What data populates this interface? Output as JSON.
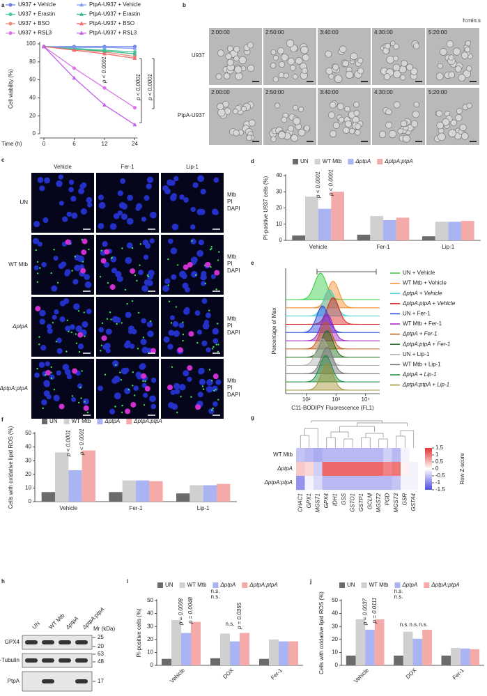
{
  "chart_data": [
    {
      "type": "line",
      "panel": "a",
      "xlabel": "Time (h)",
      "ylabel": "Cell viability (%)",
      "categories": [
        0,
        6,
        12,
        24
      ],
      "ylim": [
        0,
        100
      ],
      "yticks": [
        0,
        20,
        40,
        60,
        80,
        100
      ],
      "series": [
        {
          "name": "U937 + Vehicle",
          "color": "#6f7fe8",
          "values": [
            97,
            97,
            97,
            97
          ]
        },
        {
          "name": "U937 + Erastin",
          "color": "#4fc9a0",
          "values": [
            97,
            95,
            93,
            91
          ]
        },
        {
          "name": "U937 + BSO",
          "color": "#f08a7a",
          "values": [
            97,
            94,
            91,
            86
          ]
        },
        {
          "name": "U937 + RSL3",
          "color": "#d977e6",
          "values": [
            97,
            73,
            51,
            29
          ]
        },
        {
          "name": "PtpA-U937 + Vehicle",
          "color": "#7fa0f0",
          "values": [
            97,
            96,
            96,
            95
          ]
        },
        {
          "name": "PtpA-U937 + Erastin",
          "color": "#3fb88a",
          "values": [
            97,
            94,
            92,
            89
          ]
        },
        {
          "name": "PtpA-U937 + BSO",
          "color": "#f06a6a",
          "values": [
            97,
            93,
            89,
            84
          ]
        },
        {
          "name": "PtpA-U937 + RSL3",
          "color": "#c060e8",
          "values": [
            97,
            62,
            32,
            10
          ]
        }
      ],
      "annotations": [
        "p < 0.0001",
        "p < 0.0001",
        "p < 0.0001"
      ]
    },
    {
      "type": "bar",
      "panel": "d",
      "ylabel": "PI-positive U937 cells (%)",
      "categories": [
        "Vehicle",
        "Fer-1",
        "Lip-1"
      ],
      "ylim": [
        0,
        40
      ],
      "yticks": [
        0,
        10,
        20,
        30,
        40
      ],
      "series": [
        {
          "name": "UN",
          "color": "#6b6b6b",
          "values": [
            3,
            3.5,
            2.5
          ]
        },
        {
          "name": "WT Mtb",
          "color": "#d0d0d0",
          "values": [
            27,
            15,
            11.5
          ]
        },
        {
          "name": "ΔptpA",
          "color": "#aab4f2",
          "values": [
            19.5,
            12.5,
            11.5
          ]
        },
        {
          "name": "ΔptpA:ptpA",
          "color": "#f3aaa8",
          "values": [
            30,
            14,
            12
          ]
        }
      ],
      "annotations": [
        "p < 0.0001",
        "p < 0.0001"
      ]
    },
    {
      "type": "ridgeline",
      "panel": "e",
      "ylabel": "Percentage of Max",
      "xlabel": "C11-BODIPY Fluorescence (FL1)",
      "log_x": true,
      "xlim": [
        20,
        30000
      ],
      "xticks": [
        {
          "value": 100,
          "label": "10²"
        },
        {
          "value": 1000,
          "label": "10³"
        },
        {
          "value": 10000,
          "label": "10⁴"
        }
      ],
      "series": [
        {
          "name": "UN + Vehicle",
          "color": "#2ecc40",
          "peak": 300
        },
        {
          "name": "WT Mtb + Vehicle",
          "color": "#f28c28",
          "peak": 800
        },
        {
          "name": "ΔptpA + Vehicle",
          "color": "#40d0d0",
          "peak": 600
        },
        {
          "name": "ΔptpA:ptpA + Vehicle",
          "color": "#e02020",
          "peak": 800
        },
        {
          "name": "UN + Fer-1",
          "color": "#2040e0",
          "peak": 350
        },
        {
          "name": "WT Mtb + Fer-1",
          "color": "#a020c0",
          "peak": 500
        },
        {
          "name": "ΔptpA + Fer-1",
          "color": "#c05a10",
          "peak": 450
        },
        {
          "name": "ΔptpA:ptpA + Fer-1",
          "color": "#1a6a1a",
          "peak": 500
        },
        {
          "name": "UN + Lip-1",
          "color": "#b0b0b0",
          "peak": 350
        },
        {
          "name": "WT Mtb + Lip-1",
          "color": "#707070",
          "peak": 500
        },
        {
          "name": "ΔptpA + Lip-1",
          "color": "#1a8a3a",
          "peak": 450
        },
        {
          "name": "ΔptpA:ptpA + Lip-1",
          "color": "#a09030",
          "peak": 500
        }
      ]
    },
    {
      "type": "bar",
      "panel": "f",
      "ylabel": "Cells with oxidative lipid ROS (%)",
      "categories": [
        "Vehicle",
        "Fer-1",
        "Lip-1"
      ],
      "ylim": [
        0,
        50
      ],
      "yticks": [
        0,
        10,
        20,
        30,
        40,
        50
      ],
      "series": [
        {
          "name": "UN",
          "color": "#6b6b6b",
          "values": [
            7,
            7,
            6
          ]
        },
        {
          "name": "WT Mtb",
          "color": "#d0d0d0",
          "values": [
            36,
            15.5,
            12
          ]
        },
        {
          "name": "ΔptpA",
          "color": "#aab4f2",
          "values": [
            23,
            15.5,
            12
          ]
        },
        {
          "name": "ΔptpA:ptpA",
          "color": "#f3aaa8",
          "values": [
            37.5,
            15,
            13
          ]
        }
      ],
      "annotations": [
        "p < 0.0001",
        "p < 0.0001"
      ]
    },
    {
      "type": "heatmap",
      "panel": "g",
      "legend_title": "Row Z-score",
      "rows": [
        "WT Mtb",
        "ΔptpA",
        "ΔptpA:ptpA"
      ],
      "columns": [
        "CHAC1",
        "GPX1",
        "MGST1",
        "GPX4",
        "IDH1",
        "GSS",
        "GSTO1",
        "GSTP1",
        "GCLM",
        "MGST2",
        "PGD",
        "MGST3",
        "GSR",
        "GSTA4"
      ],
      "values": [
        [
          -0.5,
          -0.6,
          -0.7,
          -0.6,
          -0.6,
          -0.6,
          -0.6,
          -0.6,
          -0.6,
          -0.6,
          -0.4,
          -0.6,
          -0.1,
          0
        ],
        [
          0.4,
          0.3,
          -0.4,
          1.1,
          1.1,
          1.1,
          1.1,
          1.1,
          1.1,
          1.1,
          0.9,
          1,
          0.1,
          -0.1
        ],
        [
          -0.9,
          -0.1,
          -0.3,
          -0.6,
          -0.6,
          -0.6,
          -0.6,
          -0.6,
          -0.6,
          -0.6,
          -0.6,
          -0.5,
          -0.1,
          -0.1
        ]
      ],
      "zlim": [
        -1.5,
        1.5
      ],
      "zticks": [
        -1.5,
        -1,
        -0.5,
        0,
        0.5,
        1,
        1.5
      ]
    },
    {
      "type": "bar",
      "panel": "i",
      "ylabel": "PI-positive cells (%)",
      "categories": [
        "Vehicle",
        "DOX",
        "Fer-1"
      ],
      "ylim": [
        0,
        50
      ],
      "yticks": [
        0,
        10,
        20,
        30,
        40,
        50
      ],
      "series": [
        {
          "name": "UN",
          "color": "#6b6b6b",
          "values": [
            5,
            5.5,
            5
          ]
        },
        {
          "name": "WT Mtb",
          "color": "#d0d0d0",
          "values": [
            35,
            24.5,
            20
          ]
        },
        {
          "name": "ΔptpA",
          "color": "#aab4f2",
          "values": [
            25,
            18.5,
            18.5
          ]
        },
        {
          "name": "ΔptpA:ptpA",
          "color": "#f3aaa8",
          "values": [
            33.5,
            25,
            18.5
          ]
        }
      ],
      "annotations": [
        "p = 0.0008",
        "p = 0.0048",
        "n.s.",
        "n.s.",
        "n.s.",
        "p = 0.0355"
      ]
    },
    {
      "type": "bar",
      "panel": "j",
      "ylabel": "Cells with oxidative lipid ROS (%)",
      "categories": [
        "Vehicle",
        "DOX",
        "Fer-1"
      ],
      "ylim": [
        0,
        50
      ],
      "yticks": [
        0,
        10,
        20,
        30,
        40,
        50
      ],
      "series": [
        {
          "name": "UN",
          "color": "#6b6b6b",
          "values": [
            7.5,
            7.5,
            7.5
          ]
        },
        {
          "name": "WT Mtb",
          "color": "#d0d0d0",
          "values": [
            35.5,
            26,
            13.5
          ]
        },
        {
          "name": "ΔptpA",
          "color": "#aab4f2",
          "values": [
            27.5,
            20.5,
            13
          ]
        },
        {
          "name": "ΔptpA:ptpA",
          "color": "#f3aaa8",
          "values": [
            35.5,
            27.5,
            12.5
          ]
        }
      ],
      "annotations": [
        "n.s.",
        "n.s.",
        "p = 0.0037",
        "p = 0.0111",
        "n.s.",
        "n.s.",
        "n.s."
      ]
    }
  ],
  "time_lapse": {
    "panel": "b",
    "unit": "h:min:s",
    "rows": [
      "U937",
      "PtpA-U937"
    ],
    "times": [
      "2:00:00",
      "2:50:00",
      "3:40:00",
      "4:30:00",
      "5:20:00"
    ]
  },
  "microscopy": {
    "panel": "c",
    "columns": [
      "Vehicle",
      "Fer-1",
      "Lip-1"
    ],
    "rows": [
      "UN",
      "WT Mtb",
      "ΔptpA",
      "ΔptpA:ptpA"
    ],
    "channels": [
      "Mtb",
      "PI",
      "DAPI"
    ]
  },
  "blot": {
    "panel": "h",
    "lanes": [
      "UN",
      "WT Mtb",
      "ΔptpA",
      "ΔptpA:ptpA"
    ],
    "proteins": [
      "GPX4",
      "α-Tubulin",
      "PtpA"
    ],
    "mw_label": "Mr (kDa)",
    "markers": [
      25,
      20,
      63,
      48,
      17
    ]
  }
}
